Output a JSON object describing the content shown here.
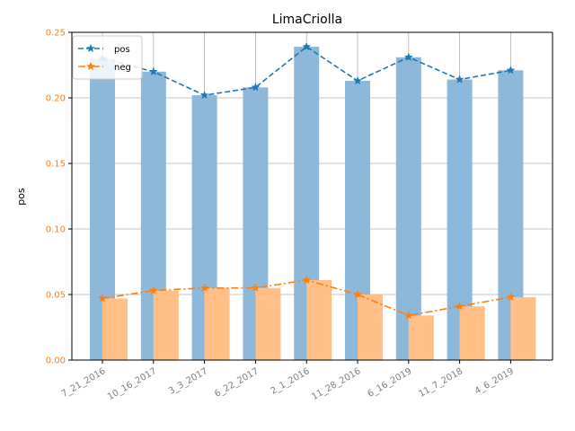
{
  "chart_data": {
    "type": "bar",
    "title": "LimaCriolla",
    "xlabel": "",
    "ylabel": "pos",
    "ylim": [
      0,
      0.25
    ],
    "yticks": [
      "0.00",
      "0.05",
      "0.10",
      "0.15",
      "0.20",
      "0.25"
    ],
    "categories": [
      "7_21_2016",
      "10_16_2017",
      "3_3_2017",
      "6_22_2017",
      "2_1_2016",
      "11_28_2016",
      "6_16_2019",
      "11_7_2018",
      "4_6_2019"
    ],
    "series": [
      {
        "name": "pos",
        "values": [
          0.23,
          0.22,
          0.202,
          0.208,
          0.239,
          0.213,
          0.231,
          0.214,
          0.221
        ],
        "color": "#1f77b4",
        "bar_color": "#8db8d9",
        "line_style": "dashed",
        "marker": "star"
      },
      {
        "name": "neg",
        "values": [
          0.047,
          0.053,
          0.055,
          0.055,
          0.061,
          0.05,
          0.034,
          0.041,
          0.048
        ],
        "color": "#ff7f0e",
        "bar_color": "#ffbf86",
        "line_style": "dashdot",
        "marker": "star"
      }
    ],
    "grid": true,
    "legend_position": "top-left",
    "ytick_color": "#ff7f0e",
    "xtick_color": "#808080",
    "xtick_rotation": 30
  }
}
